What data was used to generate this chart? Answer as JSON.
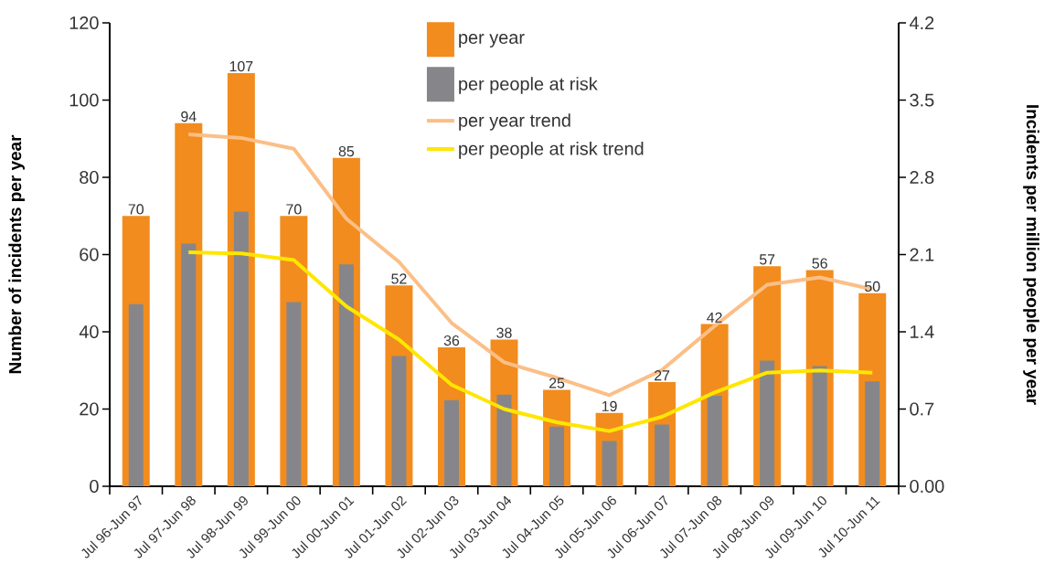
{
  "chart_data": {
    "type": "bar",
    "categories": [
      "Jul 96-Jun 97",
      "Jul 97-Jun 98",
      "Jul 98-Jun 99",
      "Jul 99-Jun 00",
      "Jul 00-Jun 01",
      "Jul 01-Jun 02",
      "Jul 02-Jun 03",
      "Jul 03-Jun 04",
      "Jul 04-Jun 05",
      "Jul 05-Jun 06",
      "Jul 06-Jun 07",
      "Jul 07-Jun 08",
      "Jul 08-Jun 09",
      "Jul 09-Jun 10",
      "Jul 10-Jun 11"
    ],
    "ylabel": "Number of incidents per year",
    "y2label": "Incidents per million people per year",
    "ylim": [
      0,
      120
    ],
    "yticks": [
      0,
      20,
      40,
      60,
      80,
      100,
      120
    ],
    "y2lim": [
      0,
      4.2
    ],
    "y2ticks": [
      {
        "value": 0,
        "label": "0.00"
      },
      0.7,
      1.4,
      2.1,
      2.8,
      3.5,
      4.2
    ],
    "legend": "top",
    "marker": "none",
    "series": [
      {
        "name": "per year",
        "color": "#f28c1e",
        "values": [
          70,
          94,
          107,
          70,
          85,
          52,
          36,
          38,
          25,
          19,
          27,
          42,
          57,
          56,
          50
        ],
        "value_labels": [
          "70",
          "94",
          "107",
          "70",
          "85",
          "52",
          "36",
          "38",
          "25",
          "19",
          "27",
          "42",
          "57",
          "56",
          "50"
        ]
      },
      {
        "name": "per people at risk",
        "color": "#86868a",
        "axis": "y2",
        "values": [
          1.65,
          2.2,
          2.49,
          1.67,
          2.01,
          1.18,
          0.78,
          0.83,
          0.54,
          0.41,
          0.56,
          0.82,
          1.14,
          1.09,
          0.95
        ]
      },
      {
        "name": "per year trend",
        "type": "line",
        "color": "#fbbf87",
        "values": [
          null,
          91.1,
          90.2,
          87.4,
          69.3,
          58.1,
          42.3,
          32.1,
          28.1,
          23.6,
          30.1,
          41.5,
          52.2,
          54.1,
          51.0
        ]
      },
      {
        "name": "per people at risk trend",
        "type": "line",
        "color": "#ffe600",
        "axis": "y2",
        "values": [
          null,
          2.12,
          2.11,
          2.05,
          1.63,
          1.33,
          0.92,
          0.7,
          0.58,
          0.5,
          0.63,
          0.85,
          1.03,
          1.05,
          1.03
        ]
      }
    ]
  }
}
